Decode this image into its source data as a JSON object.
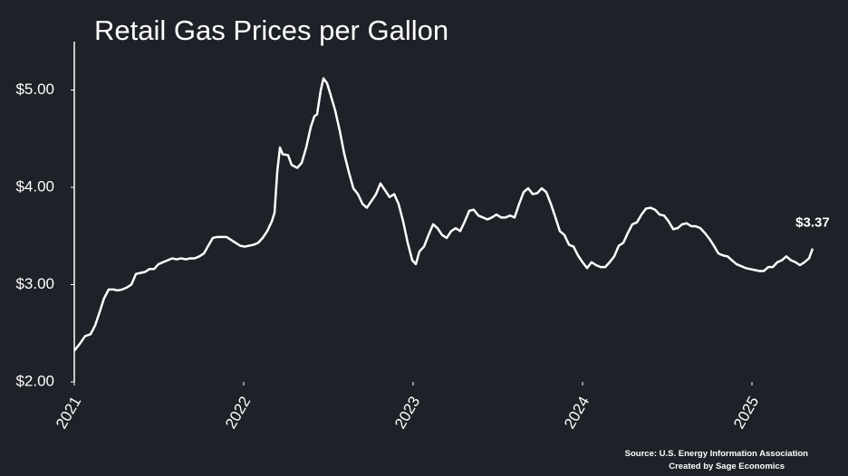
{
  "chart_data": {
    "type": "line",
    "title": "Retail Gas Prices per Gallon",
    "source": "Source: U.S. Energy Information Association",
    "credit": "Created by Sage Economics",
    "x": [
      2021.0,
      2021.032,
      2021.064,
      2021.096,
      2021.123,
      2021.15,
      2021.176,
      2021.203,
      2021.23,
      2021.257,
      2021.283,
      2021.31,
      2021.337,
      2021.364,
      2021.39,
      2021.417,
      2021.444,
      2021.471,
      2021.497,
      2021.524,
      2021.551,
      2021.578,
      2021.604,
      2021.631,
      2021.658,
      2021.684,
      2021.711,
      2021.738,
      2021.765,
      2021.791,
      2021.818,
      2021.845,
      2021.872,
      2021.898,
      2021.925,
      2021.952,
      2021.979,
      2022.005,
      2022.032,
      2022.059,
      2022.086,
      2022.112,
      2022.139,
      2022.166,
      2022.182,
      2022.198,
      2022.214,
      2022.23,
      2022.262,
      2022.283,
      2022.316,
      2022.342,
      2022.369,
      2022.396,
      2022.417,
      2022.433,
      2022.455,
      2022.471,
      2022.492,
      2022.513,
      2022.54,
      2022.567,
      2022.594,
      2022.62,
      2022.647,
      2022.674,
      2022.701,
      2022.727,
      2022.754,
      2022.781,
      2022.807,
      2022.834,
      2022.861,
      2022.888,
      2022.914,
      2022.941,
      2022.968,
      2022.995,
      2023.016,
      2023.037,
      2023.064,
      2023.091,
      2023.118,
      2023.144,
      2023.171,
      2023.198,
      2023.225,
      2023.251,
      2023.278,
      2023.305,
      2023.332,
      2023.358,
      2023.385,
      2023.412,
      2023.439,
      2023.465,
      2023.492,
      2023.519,
      2023.545,
      2023.572,
      2023.599,
      2023.626,
      2023.652,
      2023.679,
      2023.706,
      2023.733,
      2023.759,
      2023.786,
      2023.813,
      2023.84,
      2023.866,
      2023.893,
      2023.92,
      2023.947,
      2023.973,
      2024.0,
      2024.027,
      2024.053,
      2024.08,
      2024.107,
      2024.134,
      2024.16,
      2024.187,
      2024.214,
      2024.241,
      2024.267,
      2024.294,
      2024.321,
      2024.348,
      2024.374,
      2024.401,
      2024.428,
      2024.455,
      2024.481,
      2024.508,
      2024.535,
      2024.561,
      2024.588,
      2024.615,
      2024.642,
      2024.668,
      2024.695,
      2024.722,
      2024.749,
      2024.775,
      2024.802,
      2024.829,
      2024.856,
      2024.882,
      2024.909,
      2024.936,
      2024.963,
      2024.989,
      2025.016,
      2025.043,
      2025.07,
      2025.096,
      2025.123,
      2025.15,
      2025.176,
      2025.203,
      2025.23,
      2025.257,
      2025.283,
      2025.31,
      2025.337,
      2025.358
    ],
    "series": [
      {
        "color": "#ffffff",
        "values": [
          2.32,
          2.39,
          2.47,
          2.49,
          2.58,
          2.72,
          2.86,
          2.95,
          2.95,
          2.94,
          2.95,
          2.97,
          3.0,
          3.11,
          3.12,
          3.13,
          3.16,
          3.16,
          3.21,
          3.23,
          3.25,
          3.27,
          3.26,
          3.27,
          3.26,
          3.27,
          3.27,
          3.29,
          3.32,
          3.4,
          3.48,
          3.49,
          3.49,
          3.49,
          3.46,
          3.43,
          3.4,
          3.39,
          3.4,
          3.41,
          3.43,
          3.48,
          3.55,
          3.65,
          3.74,
          4.16,
          4.41,
          4.34,
          4.33,
          4.23,
          4.2,
          4.25,
          4.41,
          4.62,
          4.73,
          4.75,
          5.0,
          5.12,
          5.07,
          4.95,
          4.79,
          4.58,
          4.34,
          4.16,
          3.99,
          3.93,
          3.83,
          3.79,
          3.86,
          3.93,
          4.04,
          3.97,
          3.9,
          3.93,
          3.83,
          3.65,
          3.43,
          3.25,
          3.21,
          3.34,
          3.39,
          3.51,
          3.62,
          3.58,
          3.51,
          3.48,
          3.55,
          3.58,
          3.55,
          3.65,
          3.76,
          3.77,
          3.71,
          3.69,
          3.67,
          3.69,
          3.72,
          3.69,
          3.69,
          3.71,
          3.69,
          3.83,
          3.95,
          3.99,
          3.93,
          3.94,
          3.99,
          3.95,
          3.83,
          3.69,
          3.55,
          3.51,
          3.41,
          3.39,
          3.3,
          3.23,
          3.17,
          3.23,
          3.2,
          3.18,
          3.18,
          3.23,
          3.29,
          3.4,
          3.43,
          3.53,
          3.62,
          3.64,
          3.72,
          3.78,
          3.79,
          3.77,
          3.72,
          3.71,
          3.65,
          3.57,
          3.58,
          3.62,
          3.63,
          3.6,
          3.6,
          3.58,
          3.53,
          3.47,
          3.4,
          3.32,
          3.3,
          3.29,
          3.25,
          3.21,
          3.19,
          3.17,
          3.16,
          3.15,
          3.14,
          3.14,
          3.18,
          3.18,
          3.23,
          3.25,
          3.29,
          3.25,
          3.23,
          3.2,
          3.23,
          3.27,
          3.37
        ]
      }
    ],
    "annotations": [
      {
        "text": "$3.37",
        "x": 2025.358,
        "y": 3.37
      }
    ],
    "xlim": [
      2021,
      2025.4
    ],
    "xticks": [
      2021,
      2022,
      2023,
      2024,
      2025
    ],
    "ylim": [
      2,
      5.5
    ],
    "yticks": [
      {
        "value": 2,
        "label": "$2.00"
      },
      {
        "value": 3,
        "label": "$3.00"
      },
      {
        "value": 4,
        "label": "$4.00"
      },
      {
        "value": 5,
        "label": "$5.00"
      }
    ],
    "grid": false
  }
}
